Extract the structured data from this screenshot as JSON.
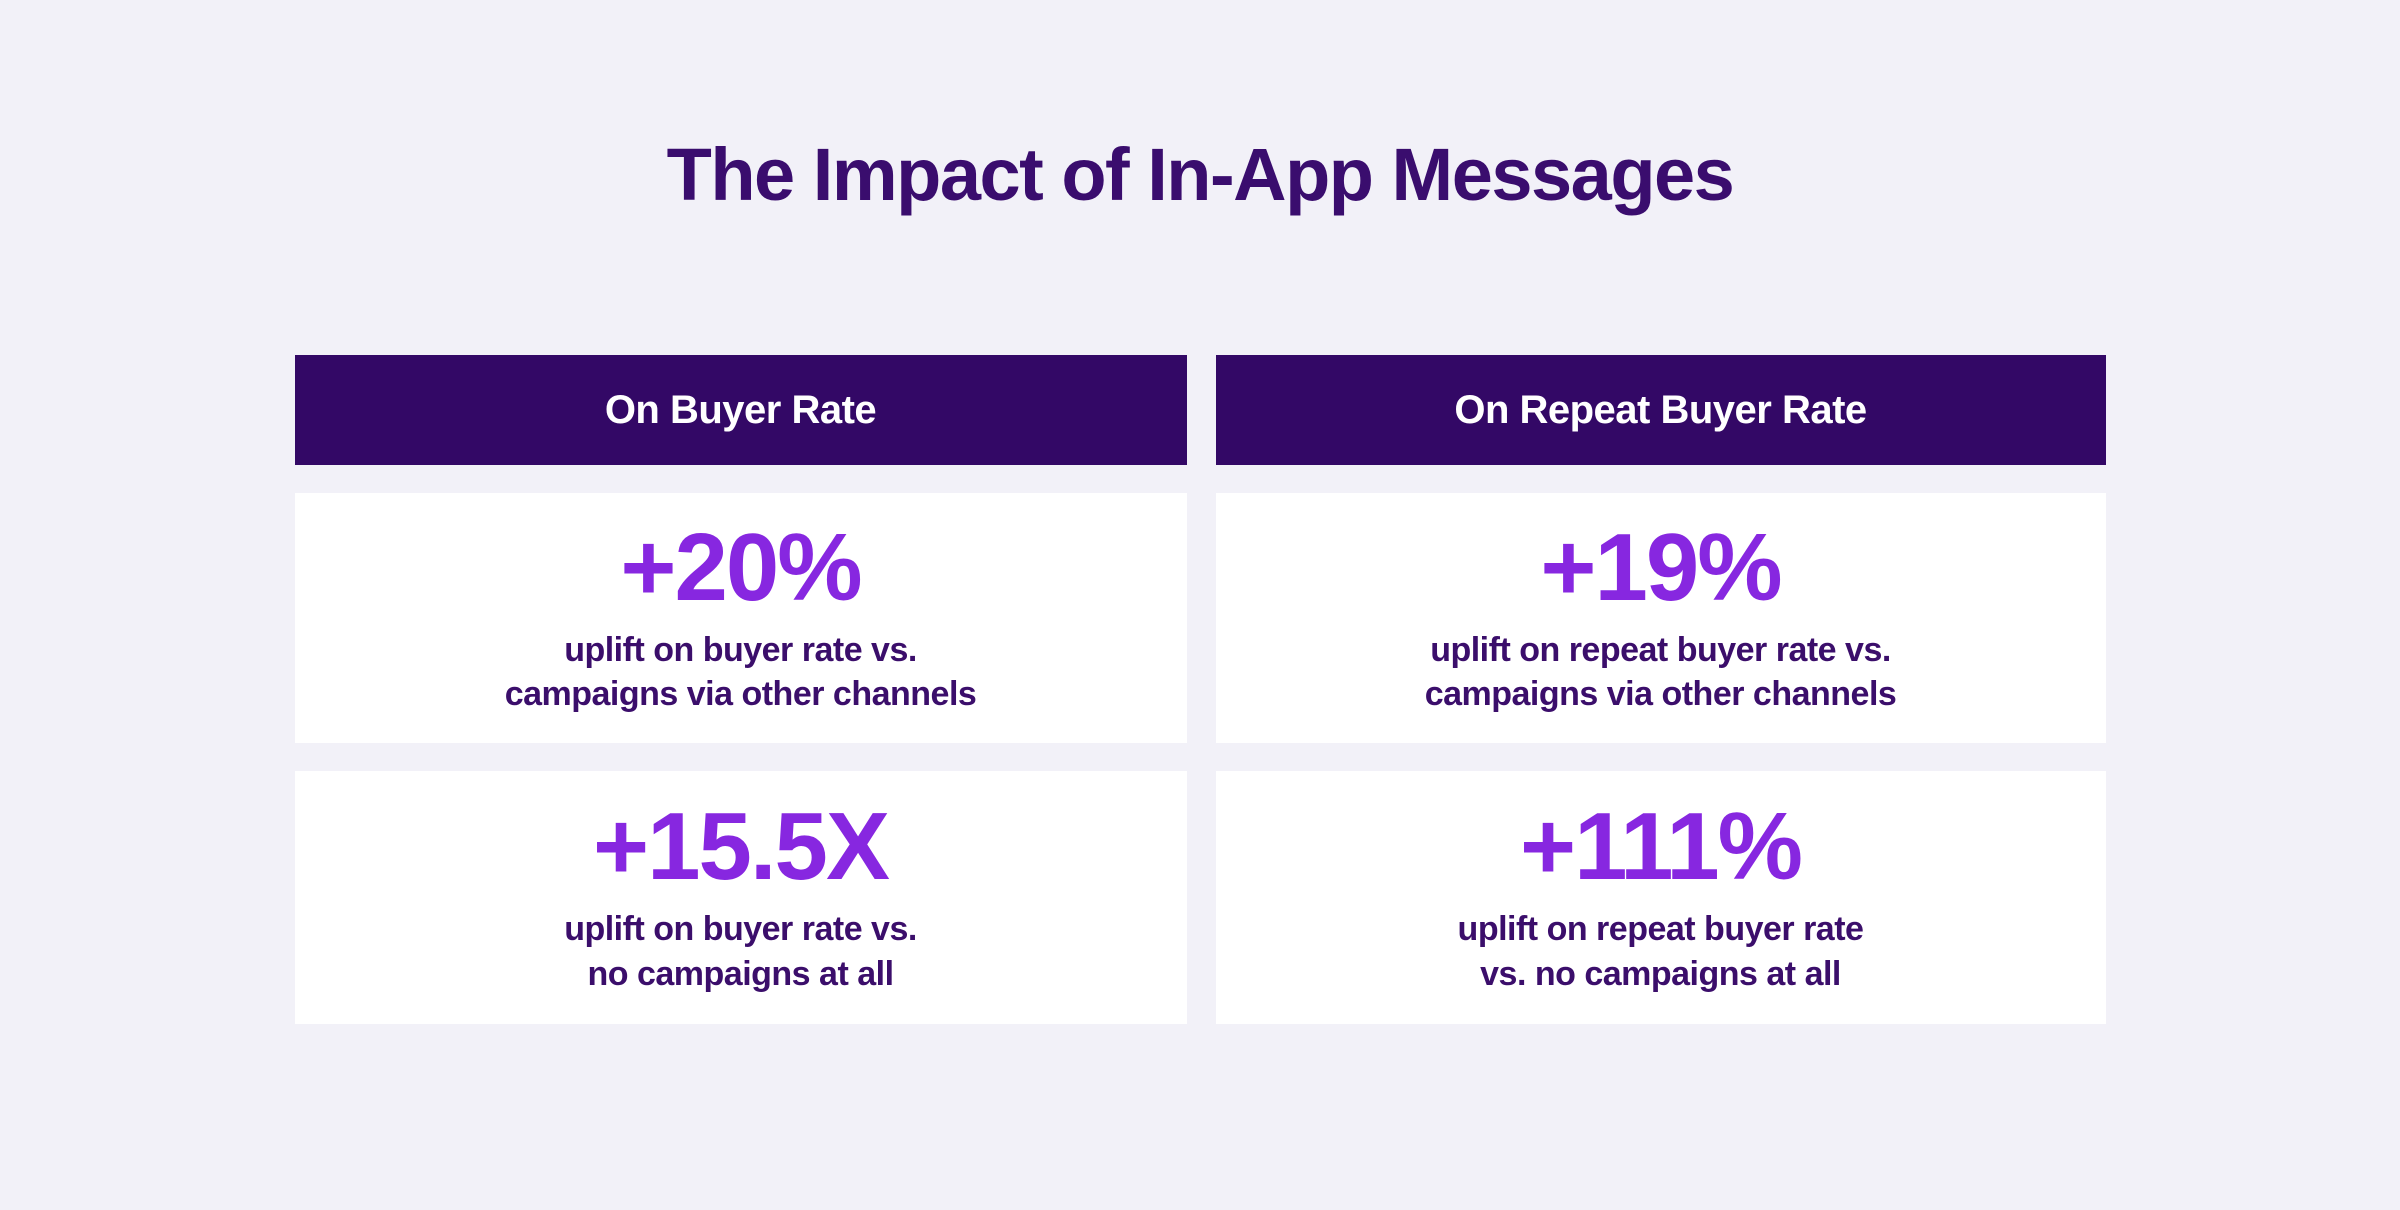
{
  "page": {
    "title": "The Impact of In-App Messages"
  },
  "colors": {
    "page_bg": "#f2f1f8",
    "header_bg": "#330866",
    "header_text": "#ffffff",
    "title_color": "#3a0d6e",
    "stat_color": "#8727e0",
    "caption_color": "#3b0e6b",
    "card_bg": "#ffffff"
  },
  "columns": [
    {
      "header": "On Buyer Rate",
      "cards": [
        {
          "stat": "+20%",
          "caption_line1": "uplift on buyer rate vs.",
          "caption_line2": "campaigns via other channels"
        },
        {
          "stat": "+15.5X",
          "caption_line1": "uplift on buyer rate vs.",
          "caption_line2": "no campaigns at all"
        }
      ]
    },
    {
      "header": "On Repeat Buyer Rate",
      "cards": [
        {
          "stat": "+19%",
          "caption_line1": "uplift on repeat buyer rate vs.",
          "caption_line2": "campaigns via other channels"
        },
        {
          "stat": "+111%",
          "caption_line1": "uplift on repeat buyer rate",
          "caption_line2": "vs. no campaigns at all"
        }
      ]
    }
  ],
  "chart_data": {
    "type": "table",
    "title": "The Impact of In-App Messages",
    "columns": [
      "On Buyer Rate",
      "On Repeat Buyer Rate"
    ],
    "rows": [
      {
        "comparison": "vs. campaigns via other channels",
        "on_buyer_rate": "+20%",
        "on_repeat_buyer_rate": "+19%"
      },
      {
        "comparison": "vs. no campaigns at all",
        "on_buyer_rate": "+15.5X",
        "on_repeat_buyer_rate": "+111%"
      }
    ]
  }
}
